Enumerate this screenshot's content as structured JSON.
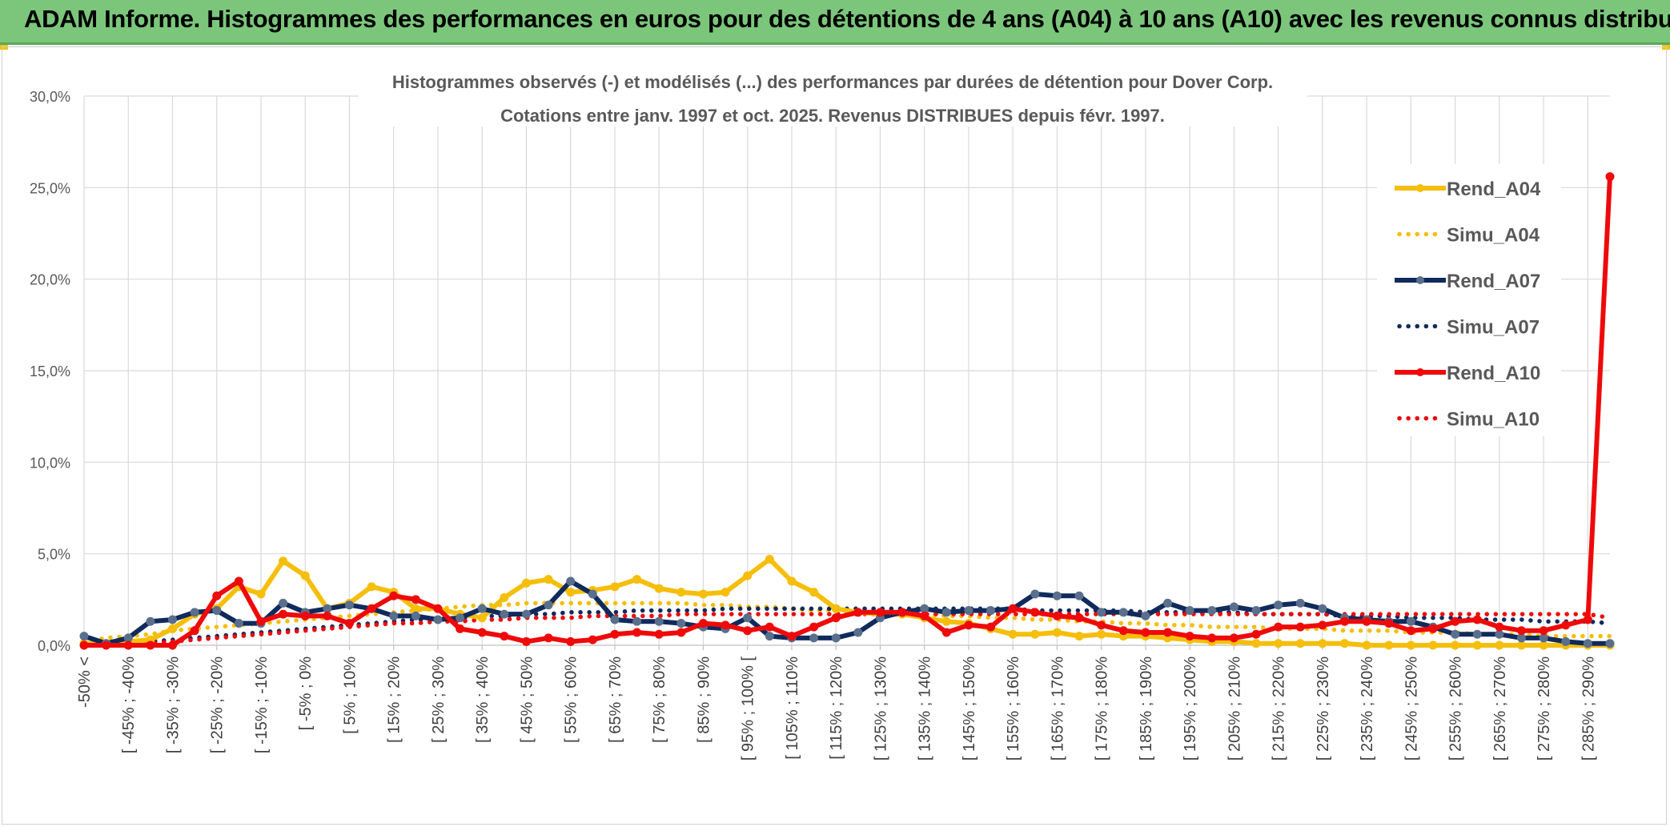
{
  "banner": {
    "title": "ADAM Informe. Histogrammes des performances en euros pour des détentions de 4 ans (A04) à 10 ans (A10) avec les revenus connus distribués"
  },
  "colors": {
    "banner": "#7bc67b",
    "a04": "#f5be0b",
    "a07": "#102a5c",
    "a07_marker": "#5a6f8c",
    "a10": "#ee0a0a",
    "grid": "#d9d9d9"
  },
  "chart_data": {
    "type": "line",
    "title": "Histogrammes observés (-) et modélisés (...) des performances par durées de détention pour Dover Corp.",
    "subtitle": "Cotations entre janv. 1997 et oct. 2025. Revenus DISTRIBUES depuis févr. 1997.",
    "ylim": [
      0,
      30
    ],
    "y_ticks": [
      "0,0%",
      "5,0%",
      "10,0%",
      "15,0%",
      "20,0%",
      "25,0%",
      "30,0%"
    ],
    "categories_count": 70,
    "x_tick_labels": [
      "-50% <",
      "[ -45% ; -40%",
      "[ -35% ; -30%",
      "[ -25% ; -20%",
      "[ -15% ; -10%",
      "[ -5% ; 0%",
      "[ 5% ; 10%",
      "[ 15% ; 20%",
      "[ 25% ; 30%",
      "[ 35% ; 40%",
      "[ 45% ; 50%",
      "[ 55% ; 60%",
      "[ 65% ; 70%",
      "[ 75% ; 80%",
      "[ 85% ; 90%",
      "[ 95% ; 100% [",
      "[ 105% ; 110%",
      "[ 115% ; 120%",
      "[ 125% ; 130%",
      "[ 135% ; 140%",
      "[ 145% ; 150%",
      "[ 155% ; 160%",
      "[ 165% ; 170%",
      "[ 175% ; 180%",
      "[ 185% ; 190%",
      "[ 195% ; 200%",
      "[ 205% ; 210%",
      "[ 215% ; 220%",
      "[ 225% ; 230%",
      "[ 235% ; 240%",
      "[ 245% ; 250%",
      "[ 255% ; 260%",
      "[ 265% ; 270%",
      "[ 275% ; 280%",
      "[ 285% ; 290%"
    ],
    "legend_position": "right",
    "series": [
      {
        "name": "Rend_A04",
        "style": "solid",
        "color": "#f5be0b",
        "values": [
          0.1,
          0.1,
          0.2,
          0.3,
          0.9,
          1.7,
          2.0,
          3.2,
          2.8,
          4.6,
          3.8,
          2.0,
          2.3,
          3.2,
          2.9,
          2.0,
          2.0,
          1.7,
          1.5,
          2.6,
          3.4,
          3.6,
          2.9,
          3.0,
          3.2,
          3.6,
          3.1,
          2.9,
          2.8,
          2.9,
          3.8,
          4.7,
          3.5,
          2.9,
          2.0,
          1.8,
          1.7,
          1.7,
          1.5,
          1.3,
          1.2,
          0.9,
          0.6,
          0.6,
          0.7,
          0.5,
          0.6,
          0.5,
          0.5,
          0.4,
          0.3,
          0.2,
          0.2,
          0.1,
          0.1,
          0.1,
          0.1,
          0.1,
          0.0,
          0.0,
          0.0,
          0.0,
          0.0,
          0.0,
          0.0,
          0.0,
          0.0,
          0.0,
          0.0,
          0.0
        ]
      },
      {
        "name": "Simu_A04",
        "style": "dotted",
        "color": "#f5be0b",
        "values": [
          0.2,
          0.4,
          0.5,
          0.6,
          0.8,
          0.9,
          1.0,
          1.1,
          1.2,
          1.3,
          1.4,
          1.5,
          1.6,
          1.7,
          1.8,
          1.9,
          2.0,
          2.1,
          2.2,
          2.2,
          2.3,
          2.3,
          2.3,
          2.3,
          2.3,
          2.3,
          2.3,
          2.3,
          2.2,
          2.2,
          2.1,
          2.1,
          2.0,
          1.9,
          1.9,
          1.8,
          1.8,
          1.7,
          1.7,
          1.6,
          1.6,
          1.5,
          1.5,
          1.4,
          1.4,
          1.3,
          1.3,
          1.2,
          1.2,
          1.1,
          1.1,
          1.0,
          1.0,
          1.0,
          0.9,
          0.9,
          0.9,
          0.8,
          0.8,
          0.8,
          0.7,
          0.7,
          0.7,
          0.6,
          0.6,
          0.6,
          0.5,
          0.5,
          0.5,
          0.5
        ]
      },
      {
        "name": "Rend_A07",
        "style": "solid",
        "color": "#102a5c",
        "values": [
          0.5,
          0.1,
          0.4,
          1.3,
          1.4,
          1.8,
          1.9,
          1.2,
          1.2,
          2.3,
          1.8,
          2.0,
          2.2,
          2.0,
          1.6,
          1.6,
          1.4,
          1.5,
          2.0,
          1.7,
          1.7,
          2.2,
          3.5,
          2.8,
          1.4,
          1.3,
          1.3,
          1.2,
          1.0,
          0.9,
          1.5,
          0.5,
          0.4,
          0.4,
          0.4,
          0.7,
          1.5,
          1.8,
          2.0,
          1.8,
          1.9,
          1.9,
          2.0,
          2.8,
          2.7,
          2.7,
          1.8,
          1.8,
          1.6,
          2.3,
          1.9,
          1.9,
          2.1,
          1.9,
          2.2,
          2.3,
          2.0,
          1.5,
          1.4,
          1.3,
          1.3,
          1.0,
          0.6,
          0.6,
          0.6,
          0.4,
          0.4,
          0.2,
          0.1,
          0.1
        ]
      },
      {
        "name": "Simu_A07",
        "style": "dotted",
        "color": "#102a5c",
        "values": [
          0.1,
          0.1,
          0.2,
          0.2,
          0.3,
          0.4,
          0.5,
          0.6,
          0.7,
          0.8,
          0.9,
          1.0,
          1.1,
          1.2,
          1.3,
          1.4,
          1.4,
          1.5,
          1.6,
          1.6,
          1.7,
          1.7,
          1.8,
          1.8,
          1.8,
          1.9,
          1.9,
          1.9,
          1.9,
          2.0,
          2.0,
          2.0,
          2.0,
          2.0,
          2.0,
          2.0,
          2.0,
          2.0,
          2.0,
          2.0,
          2.0,
          2.0,
          2.0,
          1.9,
          1.9,
          1.9,
          1.9,
          1.9,
          1.8,
          1.8,
          1.8,
          1.8,
          1.8,
          1.7,
          1.7,
          1.7,
          1.7,
          1.6,
          1.6,
          1.6,
          1.5,
          1.5,
          1.5,
          1.4,
          1.4,
          1.4,
          1.3,
          1.3,
          1.3,
          1.2
        ]
      },
      {
        "name": "Rend_A10",
        "style": "solid",
        "color": "#ee0a0a",
        "values": [
          0.0,
          0.0,
          0.0,
          0.0,
          0.0,
          0.8,
          2.7,
          3.5,
          1.3,
          1.7,
          1.6,
          1.6,
          1.2,
          2.0,
          2.7,
          2.5,
          2.0,
          0.9,
          0.7,
          0.5,
          0.2,
          0.4,
          0.2,
          0.3,
          0.6,
          0.7,
          0.6,
          0.7,
          1.2,
          1.1,
          0.8,
          1.0,
          0.5,
          1.0,
          1.5,
          1.8,
          1.8,
          1.8,
          1.6,
          0.7,
          1.1,
          1.0,
          2.0,
          1.8,
          1.6,
          1.5,
          1.1,
          0.8,
          0.7,
          0.7,
          0.5,
          0.4,
          0.4,
          0.6,
          1.0,
          1.0,
          1.1,
          1.3,
          1.3,
          1.2,
          0.8,
          0.9,
          1.3,
          1.4,
          1.0,
          0.8,
          0.8,
          1.1,
          1.4,
          25.6
        ]
      },
      {
        "name": "Simu_A10",
        "style": "dotted",
        "color": "#ee0a0a",
        "values": [
          0.0,
          0.0,
          0.1,
          0.1,
          0.2,
          0.3,
          0.4,
          0.5,
          0.6,
          0.7,
          0.8,
          0.9,
          1.0,
          1.1,
          1.2,
          1.2,
          1.3,
          1.3,
          1.4,
          1.4,
          1.5,
          1.5,
          1.5,
          1.6,
          1.6,
          1.6,
          1.6,
          1.7,
          1.7,
          1.7,
          1.7,
          1.7,
          1.7,
          1.7,
          1.7,
          1.7,
          1.7,
          1.7,
          1.7,
          1.7,
          1.7,
          1.7,
          1.7,
          1.7,
          1.7,
          1.7,
          1.7,
          1.7,
          1.7,
          1.7,
          1.7,
          1.7,
          1.7,
          1.7,
          1.7,
          1.7,
          1.7,
          1.7,
          1.7,
          1.7,
          1.7,
          1.7,
          1.7,
          1.7,
          1.7,
          1.7,
          1.7,
          1.7,
          1.7,
          1.5
        ]
      }
    ]
  }
}
